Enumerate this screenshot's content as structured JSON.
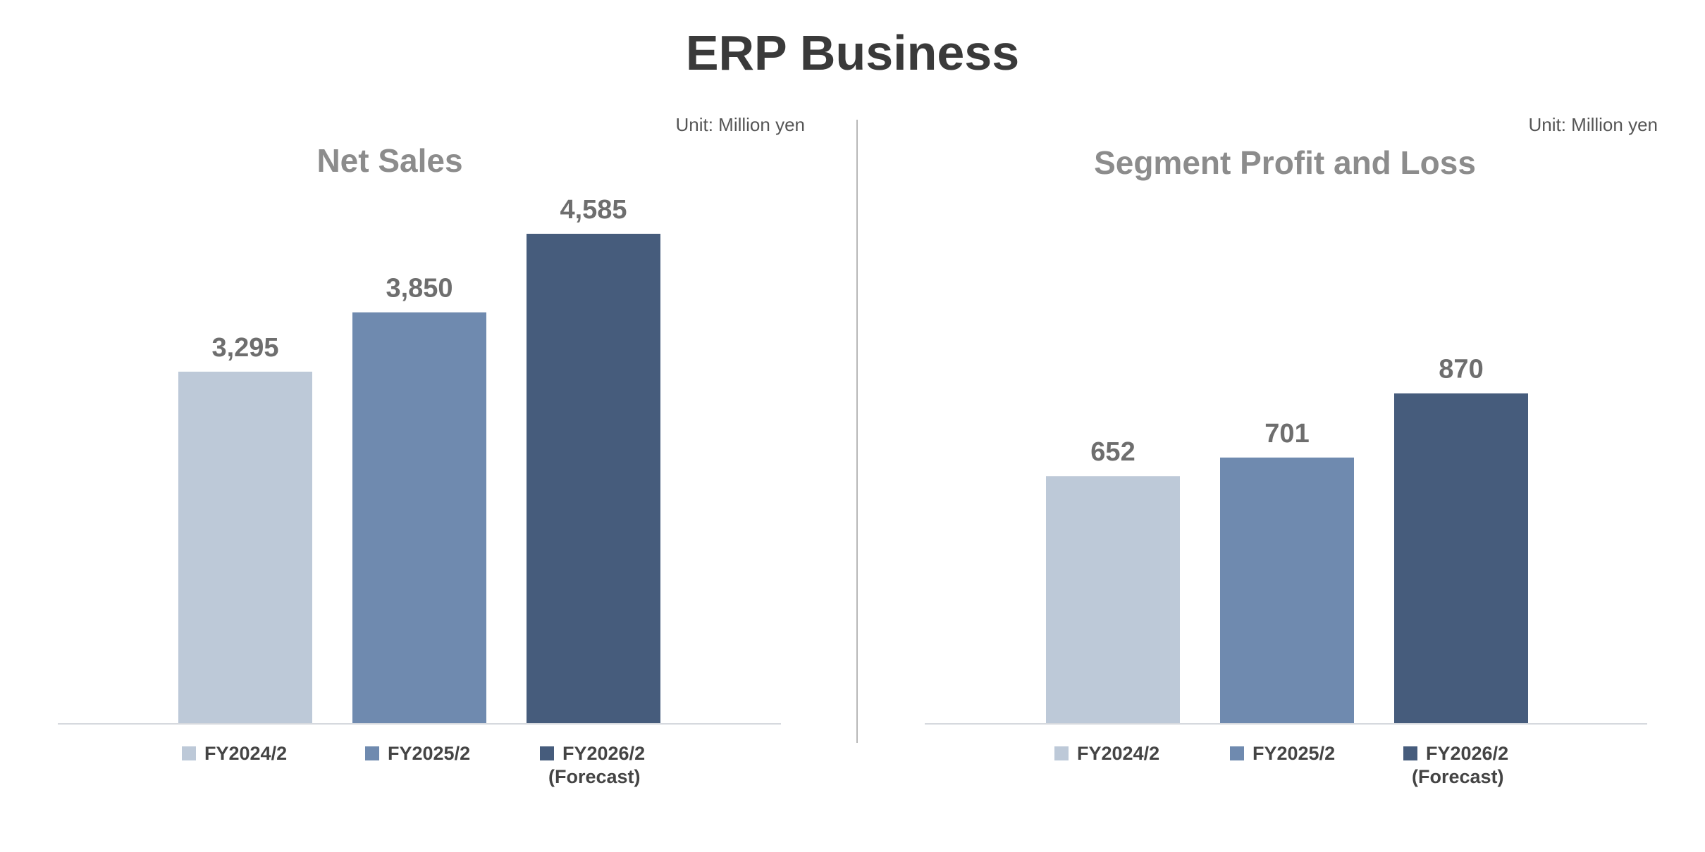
{
  "page_title": "ERP Business",
  "colors": {
    "series": [
      "#bdc9d8",
      "#6f8aaf",
      "#465c7c"
    ],
    "value_label": "#6e6e6e",
    "chart_title": "#8c8c8c",
    "unit": "#555555",
    "legend": "#444444",
    "baseline": "#d6d9de"
  },
  "chart_data": [
    {
      "type": "bar",
      "title": "Net Sales",
      "unit": "Unit: Million yen",
      "categories": [
        "FY2024/2",
        "FY2025/2",
        "FY2026/2"
      ],
      "category_notes": [
        "",
        "",
        "(Forecast)"
      ],
      "values": [
        3295,
        3850,
        4585
      ],
      "value_labels": [
        "3,295",
        "3,850",
        "4,585"
      ],
      "ylim": [
        0,
        4585
      ],
      "legend_position": "bottom",
      "grid": false
    },
    {
      "type": "bar",
      "title": "Segment Profit and Loss",
      "unit": "Unit: Million yen",
      "categories": [
        "FY2024/2",
        "FY2025/2",
        "FY2026/2"
      ],
      "category_notes": [
        "",
        "",
        "(Forecast)"
      ],
      "values": [
        652,
        701,
        870
      ],
      "value_labels": [
        "652",
        "701",
        "870"
      ],
      "ylim": [
        0,
        1290
      ],
      "legend_position": "bottom",
      "grid": false
    }
  ]
}
